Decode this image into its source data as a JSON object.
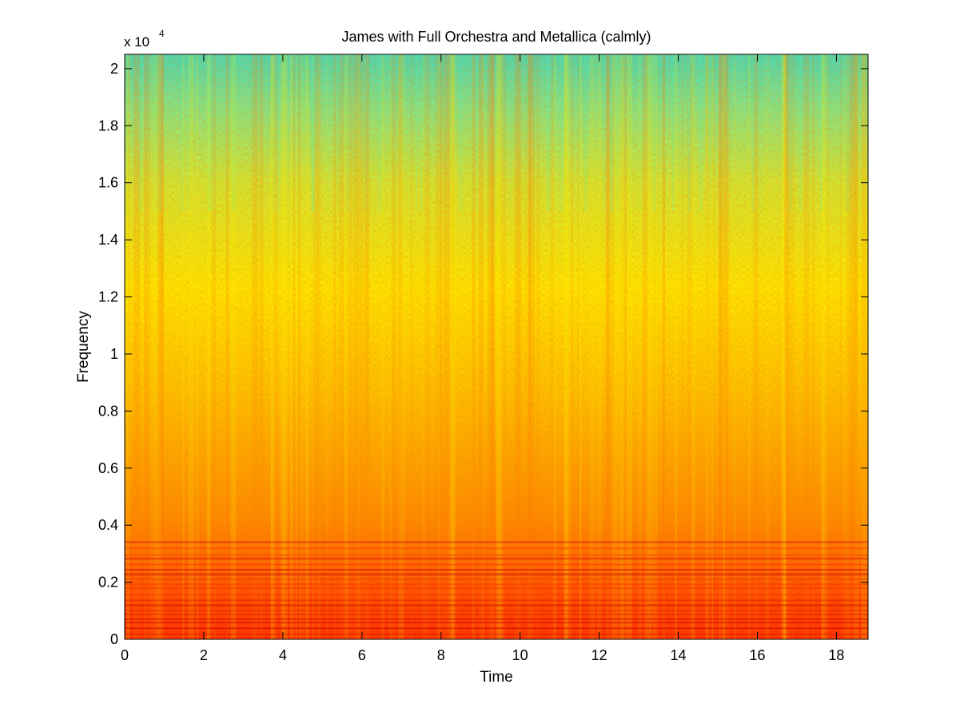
{
  "chart_data": {
    "type": "heatmap",
    "title": "James with Full Orchestra and Metallica (calmly)",
    "xlabel": "Time",
    "ylabel": "Frequency",
    "y_multiplier": {
      "base": "x 10",
      "exponent": "4"
    },
    "xlim": [
      0,
      18.8
    ],
    "ylim": [
      0,
      20500
    ],
    "x_ticks": [
      0,
      2,
      4,
      6,
      8,
      10,
      12,
      14,
      16,
      18
    ],
    "x_tick_labels": [
      "0",
      "2",
      "4",
      "6",
      "8",
      "10",
      "12",
      "14",
      "16",
      "18"
    ],
    "y_ticks": [
      0,
      2000,
      4000,
      6000,
      8000,
      10000,
      12000,
      14000,
      16000,
      18000,
      20000
    ],
    "y_tick_labels": [
      "0",
      "0.2",
      "0.4",
      "0.6",
      "0.8",
      "1",
      "1.2",
      "1.4",
      "1.6",
      "1.8",
      "2"
    ],
    "colormap": "jet",
    "colorbar": false,
    "grid": false,
    "legend": "none",
    "description_of_intensity": {
      "low_frequency_band_hz": [
        0,
        3500
      ],
      "low_frequency_level": "high",
      "high_frequency_band_hz": [
        16000,
        20500
      ],
      "high_frequency_level": "low"
    },
    "colors": {
      "high": "#ff1a00",
      "mid_high": "#ff8c00",
      "mid": "#ffff00",
      "mid_low": "#80ff80",
      "low": "#00ffff"
    }
  }
}
